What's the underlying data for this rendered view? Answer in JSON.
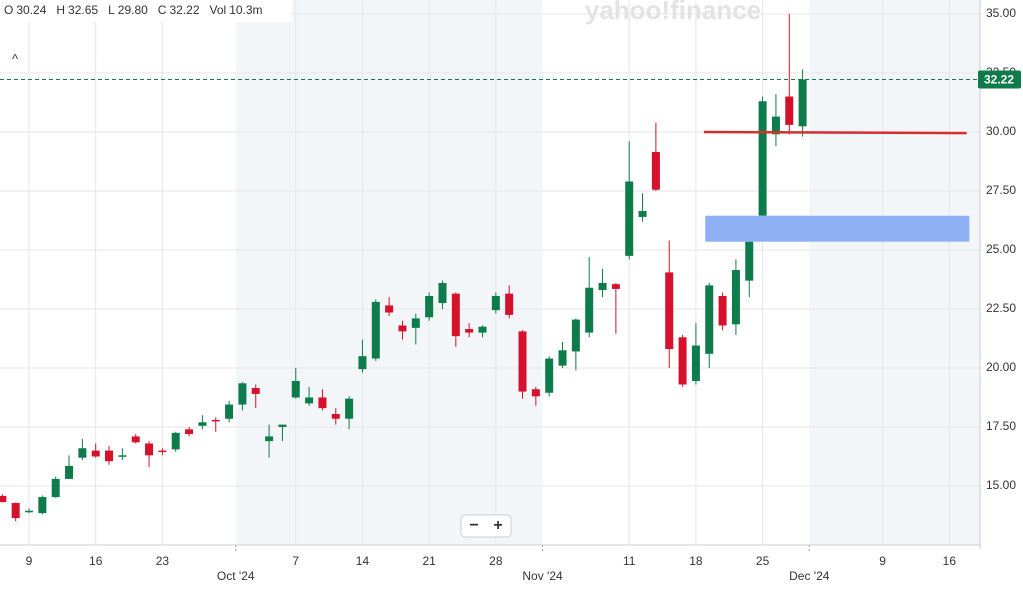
{
  "chart_data": {
    "type": "candlestick",
    "watermark": "yahoo!finance",
    "quote": [
      {
        "label": "O",
        "value": "30.24"
      },
      {
        "label": "H",
        "value": "32.65"
      },
      {
        "label": "L",
        "value": "29.80"
      },
      {
        "label": "C",
        "value": "32.22"
      },
      {
        "label": "Vol",
        "value": "10.3m"
      }
    ],
    "collapse": "^",
    "zoom": [
      "−",
      "+"
    ],
    "categories": [
      null,
      null,
      "9",
      null,
      null,
      null,
      null,
      "16",
      null,
      null,
      null,
      null,
      "23",
      null,
      null,
      null,
      null,
      null,
      null,
      null,
      null,
      null,
      "7",
      null,
      null,
      null,
      null,
      "14",
      null,
      null,
      null,
      null,
      "21",
      null,
      null,
      null,
      null,
      "28",
      null,
      null,
      null,
      null,
      null,
      null,
      null,
      null,
      null,
      "11",
      null,
      null,
      null,
      null,
      "18",
      null,
      null,
      null,
      null,
      "25",
      null,
      null,
      null,
      null,
      null,
      null,
      null,
      null,
      "9",
      null,
      null,
      null,
      null,
      "16",
      null,
      null
    ],
    "month_labels": [
      {
        "value": 17.5,
        "label": "Oct '24"
      },
      {
        "value": 40.5,
        "label": "Nov '24"
      },
      {
        "value": 60.5,
        "label": "Dec '24"
      }
    ],
    "open": [
      14.58,
      14.28,
      13.9,
      13.85,
      14.53,
      15.3,
      16.2,
      16.5,
      16.5,
      16.25,
      17.1,
      16.8,
      16.5,
      16.55,
      17.4,
      17.55,
      17.8,
      17.85,
      18.45,
      19.15,
      16.9,
      17.5,
      18.75,
      18.5,
      18.75,
      18.05,
      17.85,
      19.95,
      20.4,
      22.65,
      21.8,
      21.7,
      22.15,
      22.75,
      23.15,
      21.65,
      21.5,
      22.45,
      23.15,
      21.55,
      19.1,
      18.95,
      20.1,
      20.7,
      21.5,
      23.3,
      23.55,
      24.75,
      26.4,
      29.15,
      24.05,
      21.3,
      19.45,
      20.6,
      23.05,
      21.85,
      23.7,
      26.45,
      29.9,
      31.5,
      30.24,
      null,
      null,
      null,
      null,
      null,
      null,
      null,
      null,
      null,
      null,
      null,
      null,
      null
    ],
    "high": [
      14.65,
      14.3,
      14.05,
      14.6,
      15.4,
      16.3,
      17.0,
      16.8,
      16.7,
      16.6,
      17.2,
      16.9,
      16.6,
      17.3,
      17.5,
      18.0,
      17.9,
      18.6,
      19.4,
      19.3,
      17.6,
      17.6,
      20.0,
      19.2,
      19.1,
      18.3,
      18.8,
      21.2,
      22.9,
      23.0,
      22.0,
      22.3,
      23.2,
      23.7,
      23.2,
      21.9,
      21.8,
      23.2,
      23.5,
      21.6,
      19.2,
      20.5,
      21.1,
      22.1,
      24.7,
      24.2,
      23.6,
      29.6,
      27.4,
      30.4,
      25.4,
      21.4,
      21.9,
      23.6,
      23.2,
      24.6,
      25.9,
      31.5,
      31.6,
      35.0,
      32.65,
      null,
      null,
      null,
      null,
      null,
      null,
      null,
      null,
      null,
      null,
      null,
      null,
      null
    ],
    "low": [
      14.3,
      13.5,
      13.85,
      13.8,
      14.5,
      15.3,
      16.1,
      16.2,
      15.9,
      16.1,
      16.8,
      15.8,
      16.3,
      16.45,
      17.1,
      17.4,
      17.3,
      17.7,
      18.2,
      18.3,
      16.2,
      16.9,
      18.7,
      18.4,
      18.2,
      17.6,
      17.4,
      19.8,
      20.3,
      22.2,
      21.2,
      21.0,
      22.0,
      22.5,
      20.9,
      21.3,
      21.3,
      22.3,
      22.1,
      18.7,
      18.4,
      18.8,
      20.0,
      19.9,
      21.3,
      23.0,
      21.45,
      24.6,
      26.2,
      27.5,
      20.0,
      19.2,
      19.3,
      20.0,
      21.6,
      21.4,
      23.0,
      26.3,
      29.4,
      29.9,
      29.8,
      null,
      null,
      null,
      null,
      null,
      null,
      null,
      null,
      null,
      null,
      null,
      null,
      null
    ],
    "close": [
      14.32,
      13.64,
      13.95,
      14.53,
      15.3,
      15.85,
      16.6,
      16.25,
      16.05,
      16.3,
      16.85,
      16.3,
      16.45,
      17.25,
      17.2,
      17.7,
      17.75,
      18.45,
      19.35,
      18.9,
      17.1,
      17.6,
      19.45,
      18.75,
      18.3,
      17.85,
      18.7,
      20.5,
      22.8,
      22.35,
      21.55,
      22.1,
      23.05,
      23.6,
      21.35,
      21.5,
      21.75,
      23.05,
      22.25,
      19.0,
      18.8,
      20.4,
      20.75,
      22.05,
      23.4,
      23.6,
      23.35,
      27.9,
      26.65,
      27.55,
      20.8,
      19.3,
      20.95,
      23.5,
      21.8,
      24.15,
      25.35,
      31.3,
      30.65,
      30.3,
      32.22,
      null,
      null,
      null,
      null,
      null,
      null,
      null,
      null,
      null,
      null,
      null,
      null,
      null
    ],
    "up_color": "#0d7c4a",
    "down_color": "#d5112b",
    "last_price": 32.22,
    "last_price_color": "#0d7c4a",
    "drawings": [
      {
        "type": "line",
        "x": [
          52.6,
          72.3
        ],
        "y": [
          30.0,
          29.95
        ],
        "color": "#d32f2f"
      },
      {
        "type": "rect",
        "x": [
          52.7,
          72.5
        ],
        "y": [
          25.35,
          26.45
        ],
        "color": "#8eb0f5"
      }
    ],
    "xlim": [
      -0.175,
      73.3
    ],
    "ylim": [
      12.5,
      35.59
    ],
    "yticks": [
      {
        "value": 15,
        "label": "15.00"
      },
      {
        "value": 17.5,
        "label": "17.50"
      },
      {
        "value": 20,
        "label": "20.00"
      },
      {
        "value": 22.5,
        "label": "22.50"
      },
      {
        "value": 25,
        "label": "25.00"
      },
      {
        "value": 27.5,
        "label": "27.50"
      },
      {
        "value": 30,
        "label": "30.00"
      },
      {
        "value": 32.5,
        "label": "32.50"
      },
      {
        "value": 35,
        "label": "35.00"
      }
    ],
    "grid": true,
    "shade_color": "#f3f6f9"
  }
}
